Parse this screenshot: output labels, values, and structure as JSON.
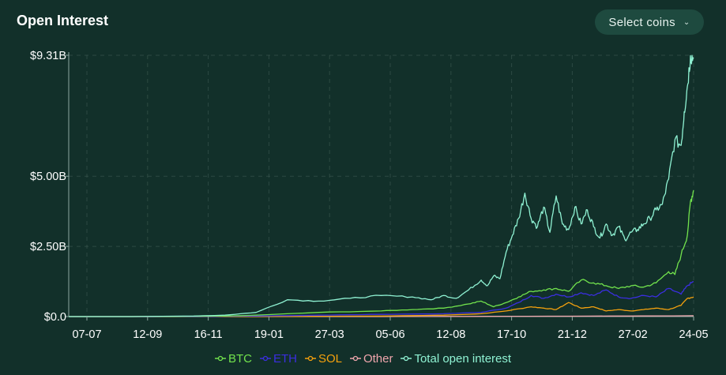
{
  "header": {
    "title": "Open Interest",
    "select_label": "Select coins",
    "select_icon": "chevron-down-icon"
  },
  "colors": {
    "background": "#12302a",
    "grid": "#3e5a53",
    "BTC": "#72e34d",
    "ETH": "#3b2ee0",
    "SOL": "#f5a10d",
    "Other": "#f0a6ad",
    "Total open interest": "#8ff2d3"
  },
  "chart_data": {
    "type": "line",
    "title": "Open Interest",
    "xlabel": "",
    "ylabel": "",
    "x_ticks": [
      "07-07",
      "12-09",
      "16-11",
      "19-01",
      "27-03",
      "05-06",
      "12-08",
      "17-10",
      "21-12",
      "27-02",
      "24-05"
    ],
    "y_ticks": [
      "$0.0",
      "$2.50B",
      "$5.00B",
      "$9.31B"
    ],
    "y_tick_values": [
      0,
      2.5,
      5.0,
      9.31
    ],
    "ylim": [
      0,
      9.31
    ],
    "grid": true,
    "legend_position": "bottom",
    "x_index_range": [
      0,
      100
    ],
    "series": [
      {
        "name": "Total open interest",
        "x": [
          0,
          10,
          20,
          25,
          30,
          35,
          40,
          45,
          50,
          55,
          58,
          60,
          62,
          64,
          66,
          67,
          68,
          69,
          70,
          71,
          72,
          73,
          74,
          75,
          76,
          77,
          78,
          79,
          80,
          81,
          82,
          83,
          84,
          85,
          86,
          87,
          88,
          89,
          90,
          91,
          92,
          93,
          94,
          95,
          96,
          97,
          98,
          98.5,
          99,
          99.5,
          100
        ],
        "values": [
          0,
          0,
          0.02,
          0.05,
          0.15,
          0.6,
          0.55,
          0.65,
          0.75,
          0.7,
          0.6,
          0.75,
          0.65,
          0.95,
          1.3,
          1.1,
          1.45,
          1.35,
          2.3,
          2.9,
          3.5,
          4.4,
          3.5,
          3.2,
          3.9,
          3.0,
          4.3,
          3.3,
          3.1,
          3.9,
          3.3,
          3.8,
          3.2,
          2.8,
          3.3,
          2.9,
          3.2,
          2.75,
          3.0,
          3.1,
          3.3,
          3.5,
          3.8,
          4.0,
          4.9,
          6.3,
          6.1,
          7.3,
          8.2,
          9.3,
          9.2
        ]
      },
      {
        "name": "BTC",
        "x": [
          0,
          10,
          20,
          25,
          30,
          40,
          50,
          55,
          60,
          64,
          66,
          68,
          70,
          72,
          74,
          76,
          78,
          80,
          82,
          84,
          86,
          88,
          90,
          92,
          94,
          96,
          97,
          98,
          99,
          99.5,
          100
        ],
        "values": [
          0,
          0,
          0.01,
          0.02,
          0.05,
          0.15,
          0.2,
          0.25,
          0.3,
          0.45,
          0.55,
          0.35,
          0.5,
          0.7,
          0.9,
          0.95,
          1.0,
          0.9,
          1.3,
          1.2,
          1.1,
          1.0,
          1.1,
          1.05,
          1.2,
          1.6,
          1.5,
          2.2,
          2.9,
          4.1,
          4.5
        ]
      },
      {
        "name": "ETH",
        "x": [
          0,
          20,
          30,
          40,
          50,
          60,
          66,
          70,
          72,
          74,
          76,
          78,
          80,
          82,
          84,
          86,
          88,
          90,
          92,
          94,
          96,
          98,
          99,
          100
        ],
        "values": [
          0,
          0,
          0.02,
          0.05,
          0.08,
          0.1,
          0.15,
          0.3,
          0.5,
          0.75,
          0.65,
          0.8,
          0.7,
          0.85,
          0.75,
          0.95,
          0.7,
          0.65,
          0.75,
          0.7,
          1.0,
          0.8,
          1.1,
          1.25
        ]
      },
      {
        "name": "SOL",
        "x": [
          0,
          30,
          50,
          60,
          66,
          70,
          74,
          76,
          78,
          80,
          82,
          84,
          86,
          88,
          90,
          92,
          94,
          96,
          98,
          99,
          100
        ],
        "values": [
          0,
          0,
          0.02,
          0.05,
          0.1,
          0.2,
          0.35,
          0.3,
          0.25,
          0.5,
          0.3,
          0.35,
          0.2,
          0.25,
          0.2,
          0.25,
          0.3,
          0.25,
          0.4,
          0.65,
          0.7
        ]
      },
      {
        "name": "Other",
        "x": [
          0,
          50,
          70,
          90,
          100
        ],
        "values": [
          0,
          0,
          0.01,
          0.02,
          0.03
        ]
      }
    ]
  },
  "legend": [
    {
      "label": "BTC",
      "color": "#72e34d"
    },
    {
      "label": "ETH",
      "color": "#3b2ee0"
    },
    {
      "label": "SOL",
      "color": "#f5a10d"
    },
    {
      "label": "Other",
      "color": "#f0a6ad"
    },
    {
      "label": "Total open interest",
      "color": "#8ff2d3"
    }
  ]
}
